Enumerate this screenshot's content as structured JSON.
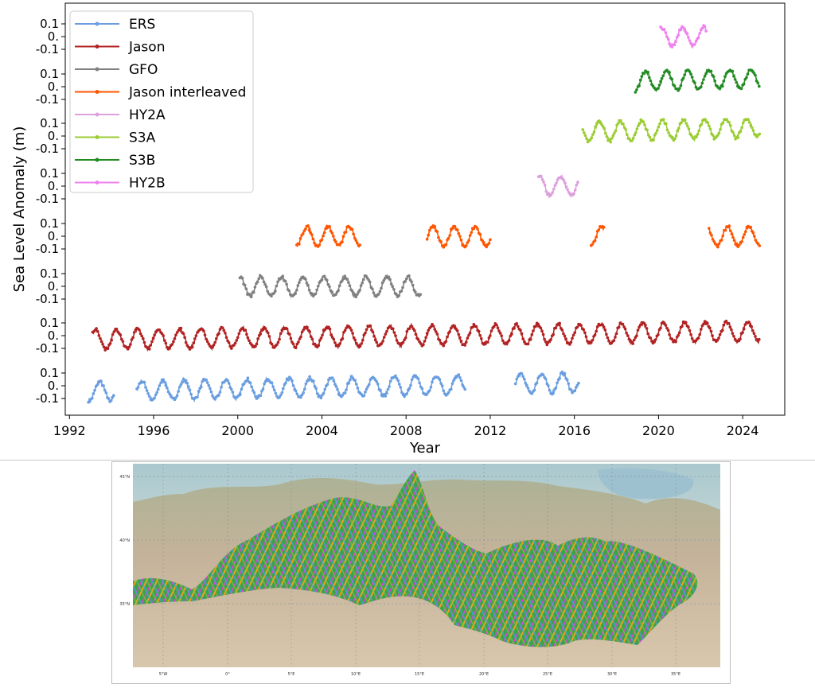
{
  "chart_data": {
    "type": "line",
    "xlabel": "Year",
    "ylabel": "Sea Level Anomaly (m)",
    "xlim": [
      1991.8,
      2026.0
    ],
    "x_ticks": [
      1992,
      1996,
      2000,
      2004,
      2008,
      2012,
      2016,
      2020,
      2024
    ],
    "y_tick_labels": [
      "0.1",
      "0.",
      "-0.1"
    ],
    "band_ylim": [
      -0.15,
      0.15
    ],
    "legend_position": "upper-left",
    "series": [
      {
        "name": "ERS",
        "color": "#6a9ee0",
        "segments": [
          [
            1992.9,
            1994.1
          ],
          [
            1995.2,
            2010.8
          ],
          [
            2013.2,
            2016.2
          ]
        ],
        "phase": 0.0,
        "trend": 0.003
      },
      {
        "name": "Jason",
        "color": "#b22222",
        "segments": [
          [
            1993.1,
            2024.8
          ]
        ],
        "phase": 0.2,
        "trend": 0.002
      },
      {
        "name": "GFO",
        "color": "#808080",
        "segments": [
          [
            2000.1,
            2008.7
          ]
        ],
        "phase": 0.35,
        "trend": 0.0
      },
      {
        "name": "Jason interleaved",
        "color": "#ff5500",
        "segments": [
          [
            2002.8,
            2005.8
          ],
          [
            2009.0,
            2012.0
          ],
          [
            2016.8,
            2017.4
          ],
          [
            2022.4,
            2024.8
          ]
        ],
        "phase": 0.15,
        "trend": 0.0
      },
      {
        "name": "HY2A",
        "color": "#dda0dd",
        "segments": [
          [
            2014.3,
            2016.2
          ]
        ],
        "phase": 0.1,
        "trend": 0.0
      },
      {
        "name": "S3A",
        "color": "#9acd32",
        "segments": [
          [
            2016.4,
            2024.8
          ]
        ],
        "phase": 0.25,
        "trend": 0.004
      },
      {
        "name": "S3B",
        "color": "#228b22",
        "segments": [
          [
            2018.9,
            2024.8
          ]
        ],
        "phase": 0.05,
        "trend": 0.004
      },
      {
        "name": "HY2B",
        "color": "#ee82ee",
        "segments": [
          [
            2020.1,
            2022.3
          ]
        ],
        "phase": 0.3,
        "trend": 0.0
      }
    ],
    "amplitude": 0.075
  },
  "map": {
    "lat_labels": [
      "45°N",
      "40°N",
      "35°N"
    ],
    "lon_labels": [
      "5°W",
      "0°",
      "5°E",
      "10°E",
      "15°E",
      "20°E",
      "25°E",
      "30°E",
      "35°E"
    ],
    "track_colors": [
      "#e040e0",
      "#2e9e3e",
      "#7fc040",
      "#f0a020",
      "#9a9a9a",
      "#4aa0e0"
    ]
  }
}
